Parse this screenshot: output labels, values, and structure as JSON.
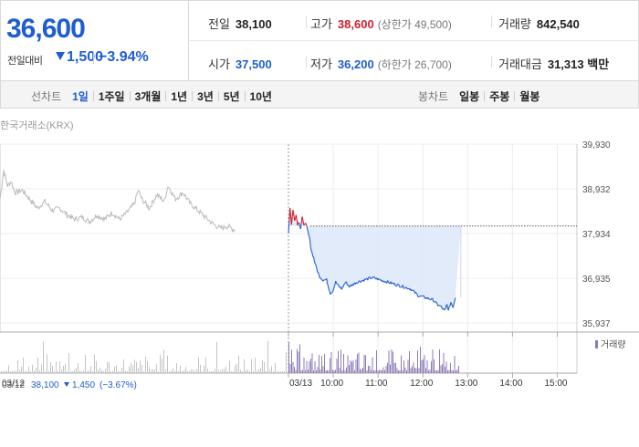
{
  "summary": {
    "price": "36,600",
    "change_label": "전일대비",
    "change": "1,500",
    "change_rate": "−3.94%",
    "prev_close": {
      "label": "전일",
      "value": "38,100"
    },
    "high": {
      "label": "고가",
      "value": "38,600",
      "sub": "(상한가 49,500)"
    },
    "volume": {
      "label": "거래량",
      "value": "842,540"
    },
    "open": {
      "label": "시가",
      "value": "37,500"
    },
    "low": {
      "label": "저가",
      "value": "36,200",
      "sub": "(하한가 26,700)"
    },
    "amount": {
      "label": "거래대금",
      "value": "31,313",
      "unit": "백만"
    }
  },
  "line_tabs": {
    "title": "선차트",
    "items": [
      "1일",
      "1주일",
      "3개월",
      "1년",
      "3년",
      "5년",
      "10년"
    ],
    "selected": "1일"
  },
  "candle_tabs": {
    "title": "봉차트",
    "items": [
      "일봉",
      "주봉",
      "월봉"
    ]
  },
  "colors": {
    "blue": "#1e5ecf",
    "red": "#d01f2d",
    "prev_day_line": "#bbbbbb",
    "fill": "#dde8f8",
    "volume_prev": "#c4c4c4",
    "volume_today": "#8e7bb8"
  },
  "chart_data": {
    "type": "line",
    "source": "한국거래소(KRX)",
    "yticks": [
      "39,930",
      "38,932",
      "37,934",
      "36,935",
      "35,937"
    ],
    "ylim": [
      35937,
      39930
    ],
    "reference_price": 38100,
    "xlabels_prev": [
      {
        "t": "03/12",
        "x": 0
      }
    ],
    "xlabels_today": [
      {
        "t": "03/13",
        "x": 0
      },
      {
        "t": "10:00",
        "x": 60
      },
      {
        "t": "11:00",
        "x": 120
      },
      {
        "t": "12:00",
        "x": 180
      },
      {
        "t": "13:00",
        "x": 240
      },
      {
        "t": "14:00",
        "x": 300
      },
      {
        "t": "15:00",
        "x": 360
      }
    ],
    "prev_day_keys": [
      [
        0,
        38700
      ],
      [
        5,
        39350
      ],
      [
        10,
        39000
      ],
      [
        15,
        39100
      ],
      [
        20,
        38850
      ],
      [
        30,
        38900
      ],
      [
        40,
        38700
      ],
      [
        50,
        38500
      ],
      [
        60,
        38650
      ],
      [
        70,
        38450
      ],
      [
        80,
        38500
      ],
      [
        90,
        38350
      ],
      [
        100,
        38250
      ],
      [
        110,
        38300
      ],
      [
        120,
        38200
      ],
      [
        130,
        38350
      ],
      [
        140,
        38250
      ],
      [
        150,
        38400
      ],
      [
        160,
        38250
      ],
      [
        170,
        38400
      ],
      [
        180,
        38600
      ],
      [
        185,
        38900
      ],
      [
        190,
        38700
      ],
      [
        200,
        38500
      ],
      [
        210,
        38800
      ],
      [
        220,
        38650
      ],
      [
        225,
        39000
      ],
      [
        235,
        38700
      ],
      [
        245,
        38850
      ],
      [
        255,
        38600
      ],
      [
        265,
        38450
      ],
      [
        275,
        38300
      ],
      [
        285,
        38150
      ],
      [
        295,
        38050
      ],
      [
        305,
        38100
      ],
      [
        315,
        38000
      ]
    ],
    "today_keys": [
      [
        0,
        37950
      ],
      [
        2,
        38500
      ],
      [
        4,
        38150
      ],
      [
        6,
        38450
      ],
      [
        8,
        38250
      ],
      [
        10,
        38350
      ],
      [
        12,
        38150
      ],
      [
        14,
        38200
      ],
      [
        16,
        38050
      ],
      [
        18,
        38300
      ],
      [
        20,
        38100
      ],
      [
        22,
        38200
      ],
      [
        25,
        38000
      ],
      [
        28,
        37800
      ],
      [
        30,
        37550
      ],
      [
        33,
        37400
      ],
      [
        36,
        37200
      ],
      [
        40,
        37000
      ],
      [
        45,
        36900
      ],
      [
        50,
        36900
      ],
      [
        55,
        36600
      ],
      [
        58,
        36650
      ],
      [
        62,
        36850
      ],
      [
        66,
        36750
      ],
      [
        70,
        36700
      ],
      [
        75,
        36850
      ],
      [
        80,
        36750
      ],
      [
        90,
        36850
      ],
      [
        100,
        36900
      ],
      [
        110,
        36950
      ],
      [
        120,
        36900
      ],
      [
        130,
        36850
      ],
      [
        140,
        36800
      ],
      [
        150,
        36750
      ],
      [
        160,
        36700
      ],
      [
        170,
        36550
      ],
      [
        180,
        36500
      ],
      [
        190,
        36450
      ],
      [
        195,
        36350
      ],
      [
        200,
        36300
      ],
      [
        205,
        36200
      ],
      [
        208,
        36350
      ],
      [
        210,
        36200
      ],
      [
        213,
        36400
      ],
      [
        216,
        36300
      ],
      [
        219,
        36500
      ]
    ],
    "volume_legend": "거래량"
  },
  "footer": {
    "date": "03/12",
    "close": "38,100",
    "change": "1,450",
    "rate": "(−3.67%)"
  }
}
